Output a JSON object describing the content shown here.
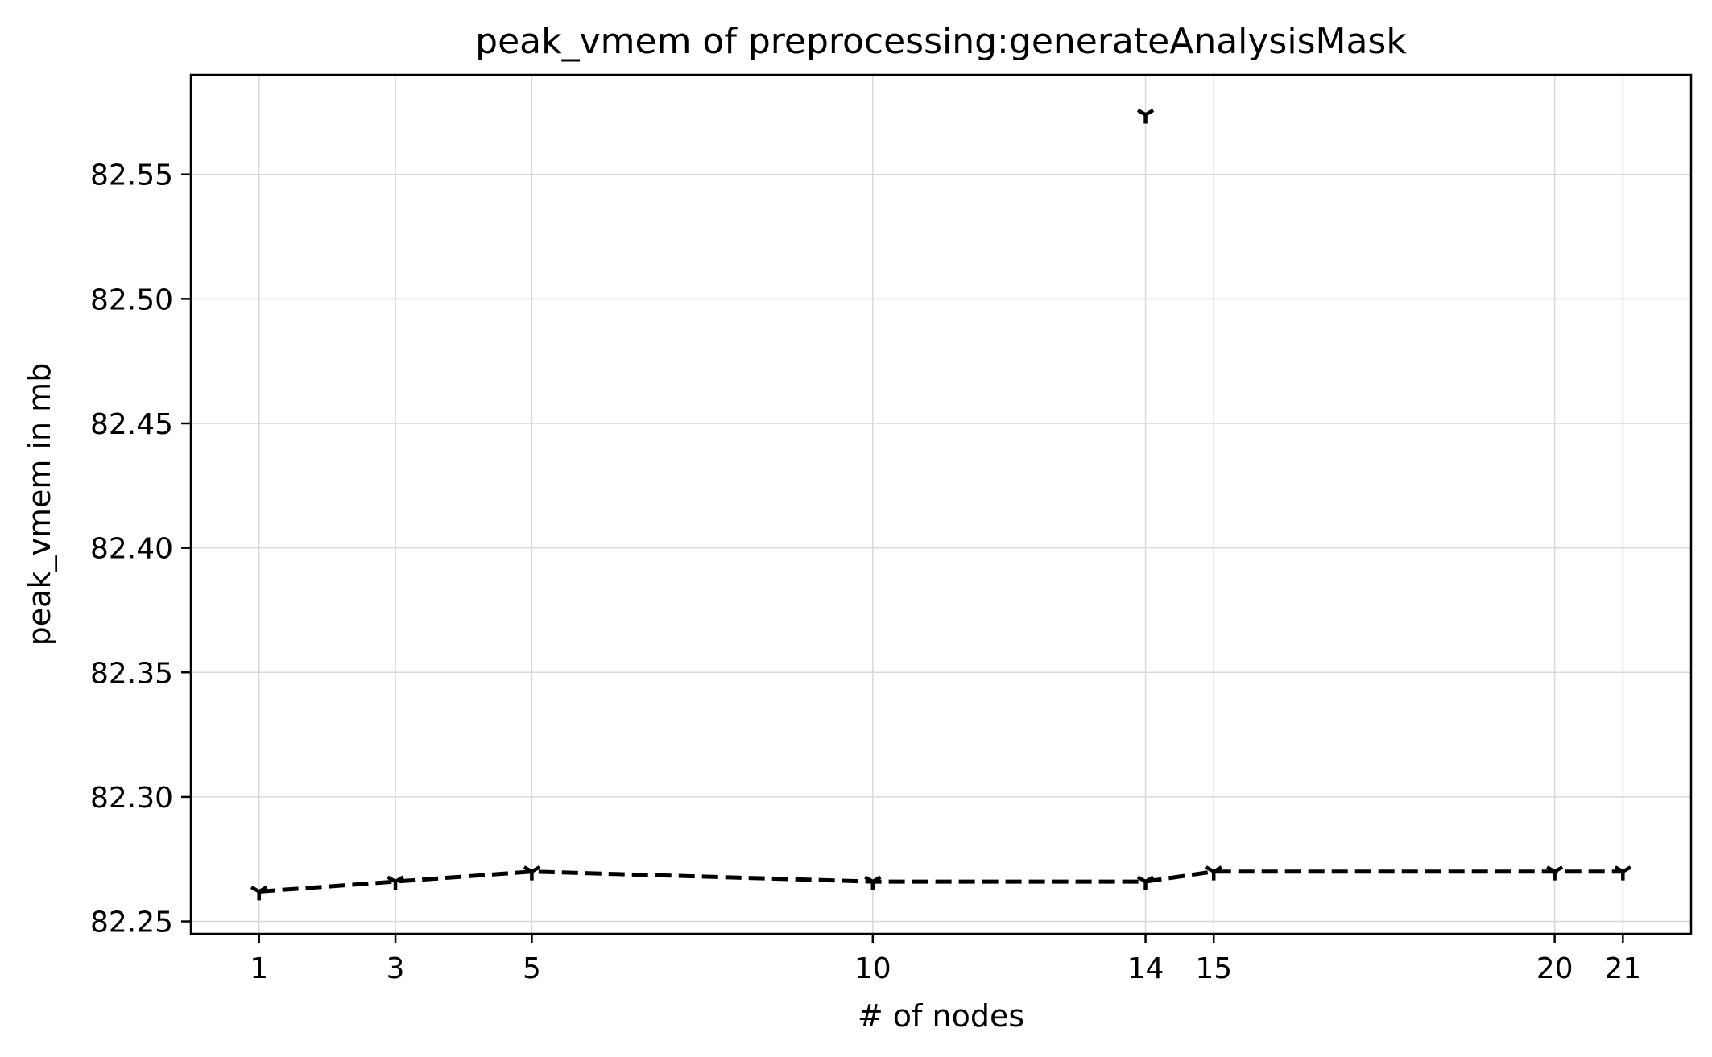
{
  "chart_data": {
    "type": "line",
    "title": "peak_vmem of preprocessing:generateAnalysisMask",
    "xlabel": "# of nodes",
    "ylabel": "peak_vmem in mb",
    "xlim": [
      0,
      22
    ],
    "ylim": [
      82.245,
      82.59
    ],
    "xticks": [
      1,
      3,
      5,
      10,
      14,
      15,
      20,
      21
    ],
    "xtick_labels": [
      "1",
      "3",
      "5",
      "10",
      "14",
      "15",
      "20",
      "21"
    ],
    "yticks": [
      82.25,
      82.3,
      82.35,
      82.4,
      82.45,
      82.5,
      82.55
    ],
    "ytick_labels": [
      "82.25",
      "82.30",
      "82.35",
      "82.40",
      "82.45",
      "82.50",
      "82.55"
    ],
    "grid": true,
    "line_color": "#000000",
    "line_style": "dashed",
    "marker": "tri_down",
    "series": [
      {
        "x": [
          1,
          3,
          5,
          10,
          14,
          15,
          20,
          21
        ],
        "values": [
          82.262,
          82.266,
          82.27,
          82.266,
          82.266,
          82.27,
          82.27,
          82.27
        ]
      }
    ],
    "extra_points": [
      {
        "x": 14,
        "y": 82.574
      }
    ]
  }
}
